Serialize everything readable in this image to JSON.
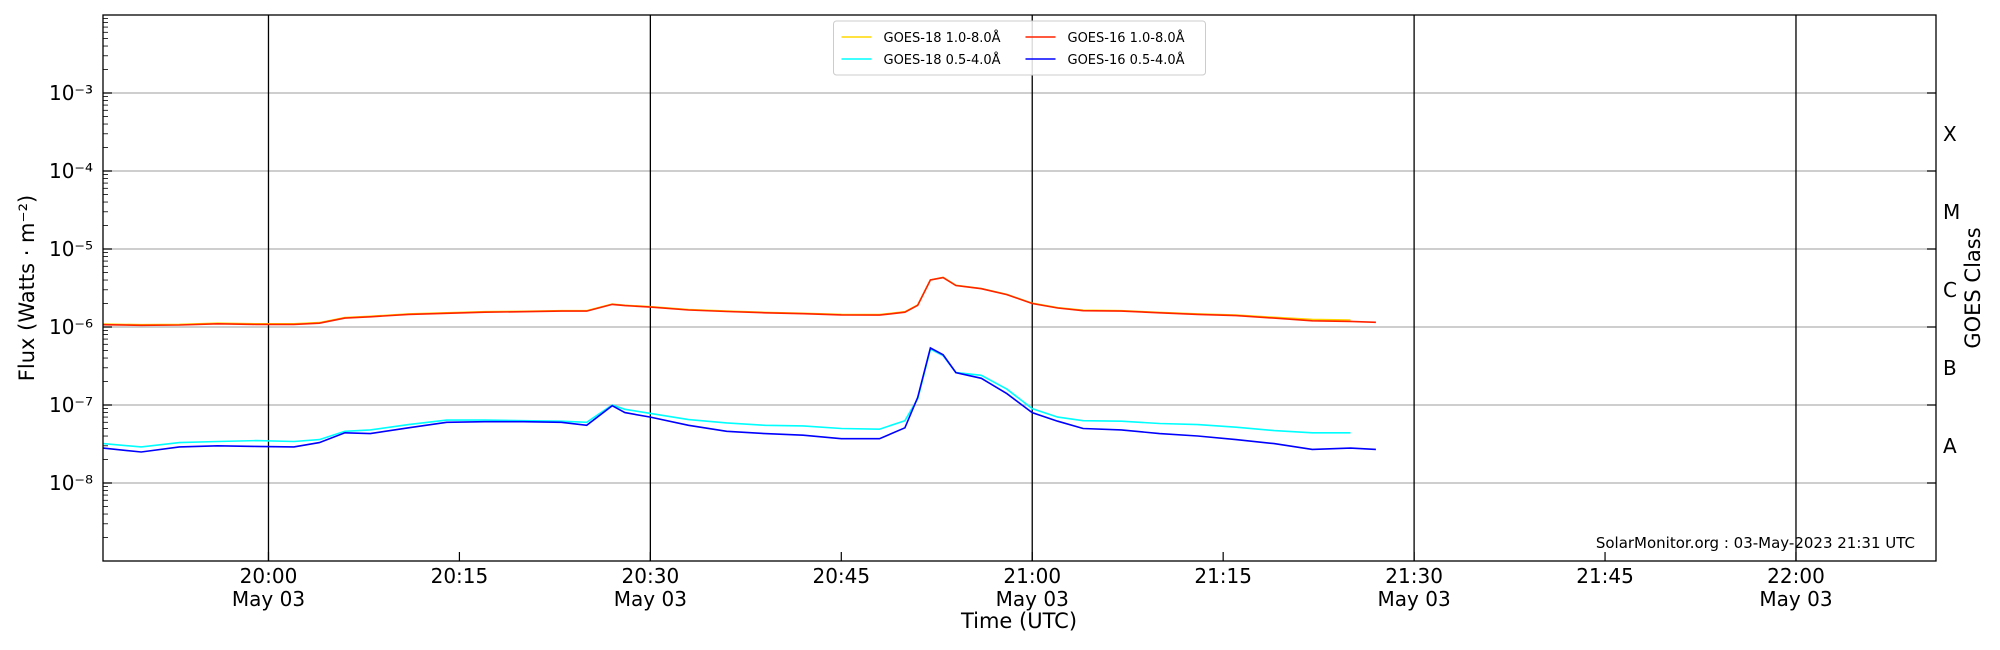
{
  "chart_data": {
    "type": "line",
    "x_label": "Time (UTC)",
    "y_label": "Flux (Watts · m⁻²)",
    "y2_label": "GOES Class",
    "annotation": "SolarMonitor.org : 03-May-2023 21:31 UTC",
    "log_scale": true,
    "legend": "upper center",
    "legend_columns": 2,
    "xlim": [
      "19:47",
      "22:11"
    ],
    "ylim": [
      1e-09,
      0.01
    ],
    "y2lim": [
      1e-09,
      0.01
    ],
    "xticks": [
      {
        "value": "20:00",
        "label": "20:00",
        "date": "May 03"
      },
      {
        "value": "20:15",
        "label": "20:15"
      },
      {
        "value": "20:30",
        "label": "20:30",
        "date": "May 03"
      },
      {
        "value": "20:45",
        "label": "20:45"
      },
      {
        "value": "21:00",
        "label": "21:00",
        "date": "May 03"
      },
      {
        "value": "21:15",
        "label": "21:15"
      },
      {
        "value": "21:30",
        "label": "21:30",
        "date": "May 03"
      },
      {
        "value": "21:45",
        "label": "21:45"
      },
      {
        "value": "22:00",
        "label": "22:00",
        "date": "May 03"
      }
    ],
    "vlines": [
      "20:00",
      "20:30",
      "21:00",
      "21:30",
      "22:00"
    ],
    "yticks": [
      {
        "value": 1e-08,
        "label": "10⁻⁸"
      },
      {
        "value": 1e-07,
        "label": "10⁻⁷"
      },
      {
        "value": 1e-06,
        "label": "10⁻⁶"
      },
      {
        "value": 1e-05,
        "label": "10⁻⁵"
      },
      {
        "value": 0.0001,
        "label": "10⁻⁴"
      },
      {
        "value": 0.001,
        "label": "10⁻³"
      }
    ],
    "y2ticks": [
      {
        "value": 3e-08,
        "label": "A"
      },
      {
        "value": 3e-07,
        "label": "B"
      },
      {
        "value": 3e-06,
        "label": "C"
      },
      {
        "value": 3e-05,
        "label": "M"
      },
      {
        "value": 0.0003,
        "label": "X"
      }
    ],
    "grid": true,
    "x": [
      "19:47",
      "19:50",
      "19:53",
      "19:56",
      "19:59",
      "20:02",
      "20:04",
      "20:06",
      "20:08",
      "20:11",
      "20:14",
      "20:17",
      "20:20",
      "20:23",
      "20:25",
      "20:27",
      "20:28",
      "20:30",
      "20:33",
      "20:36",
      "20:39",
      "20:42",
      "20:45",
      "20:48",
      "20:50",
      "20:51",
      "20:52",
      "20:53",
      "20:54",
      "20:56",
      "20:58",
      "21:00",
      "21:02",
      "21:04",
      "21:07",
      "21:10",
      "21:13",
      "21:16",
      "21:19",
      "21:22",
      "21:25",
      "21:27"
    ],
    "series": [
      {
        "name": "GOES-18 1.0-8.0Å",
        "color": "#ffd700",
        "values": [
          1.09e-06,
          1.07e-06,
          1.08e-06,
          1.12e-06,
          1.1e-06,
          1.1e-06,
          1.14e-06,
          1.32e-06,
          1.37e-06,
          1.47e-06,
          1.52e-06,
          1.57e-06,
          1.59e-06,
          1.62e-06,
          1.62e-06,
          1.97e-06,
          1.9e-06,
          1.82e-06,
          1.67e-06,
          1.6e-06,
          1.54e-06,
          1.5e-06,
          1.45e-06,
          1.44e-06,
          1.57e-06,
          1.92e-06,
          4.02e-06,
          4.32e-06,
          3.42e-06,
          3.12e-06,
          2.62e-06,
          2.02e-06,
          1.77e-06,
          1.64e-06,
          1.62e-06,
          1.54e-06,
          1.47e-06,
          1.42e-06,
          1.33e-06,
          1.25e-06,
          1.23e-06,
          null
        ]
      },
      {
        "name": "GOES-18 0.5-4.0Å",
        "color": "#00ffff",
        "values": [
          3.2e-08,
          2.9e-08,
          3.3e-08,
          3.4e-08,
          3.5e-08,
          3.4e-08,
          3.6e-08,
          4.6e-08,
          4.8e-08,
          5.6e-08,
          6.4e-08,
          6.4e-08,
          6.3e-08,
          6.2e-08,
          6e-08,
          1e-07,
          8.8e-08,
          7.8e-08,
          6.5e-08,
          5.9e-08,
          5.5e-08,
          5.4e-08,
          5e-08,
          4.9e-08,
          6.3e-08,
          1.2e-07,
          5.2e-07,
          4.3e-07,
          2.6e-07,
          2.4e-07,
          1.6e-07,
          9e-08,
          7e-08,
          6.3e-08,
          6.2e-08,
          5.8e-08,
          5.6e-08,
          5.2e-08,
          4.7e-08,
          4.4e-08,
          4.4e-08,
          null
        ]
      },
      {
        "name": "GOES-16 1.0-8.0Å",
        "color": "#ff2200",
        "values": [
          1.07e-06,
          1.05e-06,
          1.06e-06,
          1.1e-06,
          1.08e-06,
          1.08e-06,
          1.12e-06,
          1.3e-06,
          1.35e-06,
          1.45e-06,
          1.5e-06,
          1.55e-06,
          1.57e-06,
          1.6e-06,
          1.6e-06,
          1.95e-06,
          1.88e-06,
          1.8e-06,
          1.65e-06,
          1.58e-06,
          1.52e-06,
          1.48e-06,
          1.43e-06,
          1.42e-06,
          1.55e-06,
          1.9e-06,
          4e-06,
          4.3e-06,
          3.4e-06,
          3.1e-06,
          2.6e-06,
          2e-06,
          1.75e-06,
          1.62e-06,
          1.6e-06,
          1.52e-06,
          1.45e-06,
          1.4e-06,
          1.3e-06,
          1.2e-06,
          1.18e-06,
          1.15e-06
        ]
      },
      {
        "name": "GOES-16 0.5-4.0Å",
        "color": "#0000ff",
        "values": [
          2.8e-08,
          2.5e-08,
          2.9e-08,
          3e-08,
          2.95e-08,
          2.9e-08,
          3.3e-08,
          4.4e-08,
          4.3e-08,
          5.1e-08,
          6e-08,
          6.1e-08,
          6.1e-08,
          6e-08,
          5.5e-08,
          9.8e-08,
          8e-08,
          7e-08,
          5.5e-08,
          4.6e-08,
          4.3e-08,
          4.1e-08,
          3.7e-08,
          3.7e-08,
          5.1e-08,
          1.25e-07,
          5.4e-07,
          4.4e-07,
          2.6e-07,
          2.2e-07,
          1.4e-07,
          8e-08,
          6.2e-08,
          5e-08,
          4.8e-08,
          4.3e-08,
          4e-08,
          3.6e-08,
          3.2e-08,
          2.7e-08,
          2.8e-08,
          2.7e-08
        ]
      }
    ]
  }
}
